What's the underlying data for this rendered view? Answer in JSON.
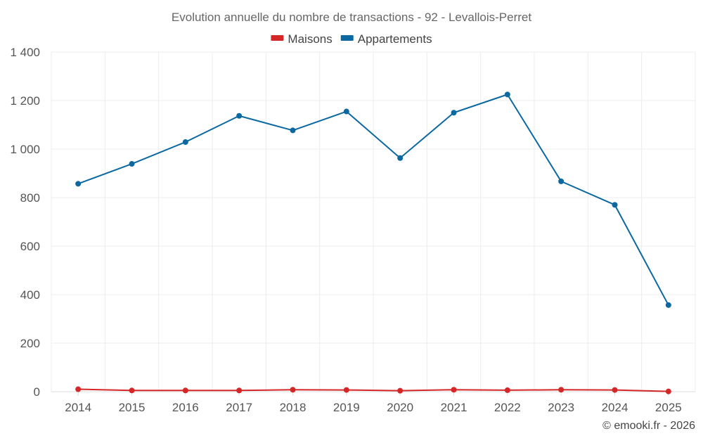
{
  "chart_data": {
    "type": "line",
    "title": "Evolution annuelle du nombre de transactions - 92 - Levallois-Perret",
    "xlabel": "",
    "ylabel": "",
    "categories": [
      "2014",
      "2015",
      "2016",
      "2017",
      "2018",
      "2019",
      "2020",
      "2021",
      "2022",
      "2023",
      "2024",
      "2025"
    ],
    "ylim": [
      0,
      1400
    ],
    "yticks": [
      0,
      200,
      400,
      600,
      800,
      1000,
      1200,
      1400
    ],
    "ytick_labels": [
      "0",
      "200",
      "400",
      "600",
      "800",
      "1 000",
      "1 200",
      "1 400"
    ],
    "grid": true,
    "legend_position": "top-center",
    "series": [
      {
        "name": "Maisons",
        "color": "#d62728",
        "values": [
          10,
          5,
          5,
          5,
          8,
          7,
          4,
          8,
          6,
          8,
          7,
          1
        ]
      },
      {
        "name": "Appartements",
        "color": "#0b68a0",
        "values": [
          857,
          939,
          1029,
          1137,
          1077,
          1155,
          963,
          1150,
          1225,
          867,
          770,
          357
        ]
      }
    ],
    "footer": "© emooki.fr - 2026"
  }
}
